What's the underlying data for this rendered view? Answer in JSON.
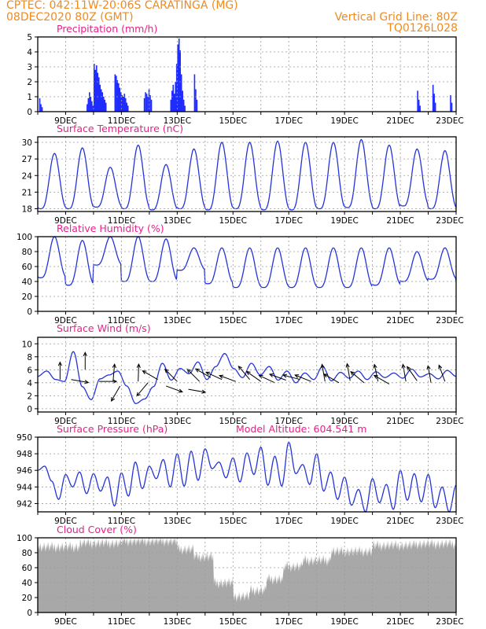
{
  "header": {
    "station_line": "CPTEC:   042:11W-20:06S   CARATINGA (MG)",
    "date_line": "08DEC2020 80Z (GMT)",
    "grid_line": "Vertical Grid Line: 80Z",
    "code": "TQ0126L028"
  },
  "colors": {
    "header": "#f08a1e",
    "title": "#e8208a",
    "precip_bar": "#1f2cff",
    "line": "#2433d9",
    "cloud": "#a8a8a8",
    "arrow": "#000000"
  },
  "x_axis": {
    "ticks": [
      "9DEC",
      "11DEC",
      "13DEC",
      "15DEC",
      "17DEC",
      "19DEC",
      "21DEC",
      "23DEC"
    ]
  },
  "chart_data": [
    {
      "type": "bar",
      "title": "Precipitation (mm/h)",
      "x_start": "08DEC2020",
      "x_end": "23DEC2020",
      "ylim": [
        0,
        5
      ],
      "yticks": [
        0,
        1,
        2,
        3,
        4,
        5
      ],
      "grid": true,
      "hourly": [
        [
          0.9,
          0.5,
          0.3
        ],
        [
          0.5,
          0.9,
          1.3,
          1.0,
          0.7,
          0.4,
          3.2,
          2.8,
          3.1,
          2.6,
          2.3,
          1.8,
          1.5,
          1.3,
          1.0,
          0.8,
          0.6
        ],
        [
          2.5,
          2.4,
          2.1,
          1.9,
          1.6,
          1.3,
          1.1,
          1.0,
          1.2,
          0.9,
          0.6,
          0.4
        ],
        [
          0.9,
          1.3,
          1.2,
          1.0,
          1.5,
          1.1,
          0.8
        ],
        [
          0.8,
          1.4,
          1.8,
          1.2,
          2.0,
          3.2,
          4.5,
          4.9,
          4.1,
          2.5,
          1.4,
          0.8,
          0.4
        ],
        [
          2.5,
          1.5,
          0.8
        ],
        [
          1.4,
          0.8,
          0.4
        ],
        [
          1.8,
          1.2,
          0.6
        ],
        [
          1.1,
          0.6
        ]
      ]
    },
    {
      "type": "line",
      "title": "Surface Temperature (nC)",
      "ylim": [
        17.5,
        31
      ],
      "yticks": [
        18,
        21,
        24,
        27,
        30
      ],
      "grid": true,
      "daily_min": [
        18.0,
        18.0,
        18.3,
        18.0,
        17.8,
        18.0,
        17.8,
        18.0,
        17.8,
        17.8,
        18.0,
        18.2,
        18.0,
        18.5,
        18.0
      ],
      "daily_max": [
        28.0,
        29.0,
        25.5,
        29.5,
        26.0,
        28.8,
        30.0,
        30.0,
        30.2,
        30.0,
        30.0,
        30.5,
        29.5,
        28.8,
        28.5
      ]
    },
    {
      "type": "line",
      "title": "Relative Humidity (%)",
      "ylim": [
        0,
        100
      ],
      "yticks": [
        0,
        20,
        40,
        60,
        80,
        100
      ],
      "grid": true,
      "daily_min": [
        45,
        35,
        62,
        40,
        40,
        55,
        37,
        32,
        32,
        32,
        32,
        32,
        35,
        40,
        43,
        40
      ],
      "daily_max": [
        100,
        95,
        100,
        100,
        97,
        85,
        85,
        85,
        85,
        85,
        85,
        85,
        85,
        80,
        85,
        82
      ]
    },
    {
      "type": "line",
      "title": "Surface Wind (m/s)",
      "ylim": [
        -0.5,
        11
      ],
      "yticks": [
        0,
        2,
        4,
        6,
        8,
        10
      ],
      "grid": true,
      "speed_profile": [
        5.0,
        5.8,
        4.5,
        4.2,
        8.8,
        3.4,
        1.4,
        4.6,
        5.2,
        5.8,
        3.5,
        0.8,
        1.5,
        3.4,
        7.0,
        4.4,
        6.2,
        5.4,
        7.2,
        4.5,
        6.5,
        8.5,
        6.2,
        4.8,
        7.0,
        5.2,
        6.5,
        4.4,
        5.8,
        4.0,
        5.5,
        4.5,
        6.5,
        4.3,
        5.6,
        4.7,
        5.8,
        4.5,
        5.7,
        4.8,
        5.5,
        4.7,
        6.1,
        4.9,
        5.4,
        4.6,
        5.9,
        5.0
      ],
      "arrows": [
        {
          "day": 0.8,
          "dir_deg": 180,
          "mag": 4.5
        },
        {
          "day": 1.2,
          "dir_deg": 80,
          "mag": 4.5
        },
        {
          "day": 1.7,
          "dir_deg": 180,
          "mag": 6.0
        },
        {
          "day": 2.2,
          "dir_deg": 90,
          "mag": 4.2
        },
        {
          "day": 2.7,
          "dir_deg": 175,
          "mag": 4.2
        },
        {
          "day": 2.95,
          "dir_deg": 330,
          "mag": 3.5
        },
        {
          "day": 3.6,
          "dir_deg": 178,
          "mag": 4.2
        },
        {
          "day": 3.95,
          "dir_deg": 320,
          "mag": 4.0
        },
        {
          "day": 4.3,
          "dir_deg": 240,
          "mag": 4.5
        },
        {
          "day": 4.6,
          "dir_deg": 70,
          "mag": 3.5
        },
        {
          "day": 5.0,
          "dir_deg": 225,
          "mag": 4.2
        },
        {
          "day": 5.4,
          "dir_deg": 80,
          "mag": 3.0
        },
        {
          "day": 5.8,
          "dir_deg": 225,
          "mag": 4.2
        },
        {
          "day": 6.2,
          "dir_deg": 240,
          "mag": 4.8
        },
        {
          "day": 6.6,
          "dir_deg": 245,
          "mag": 4.5
        },
        {
          "day": 7.1,
          "dir_deg": 250,
          "mag": 4.2
        },
        {
          "day": 7.6,
          "dir_deg": 220,
          "mag": 4.5
        },
        {
          "day": 8.0,
          "dir_deg": 235,
          "mag": 4.2
        },
        {
          "day": 8.5,
          "dir_deg": 245,
          "mag": 4.0
        },
        {
          "day": 8.9,
          "dir_deg": 250,
          "mag": 4.4
        },
        {
          "day": 9.4,
          "dir_deg": 255,
          "mag": 4.5
        },
        {
          "day": 9.8,
          "dir_deg": 248,
          "mag": 4.2
        },
        {
          "day": 10.3,
          "dir_deg": 190,
          "mag": 4.2
        },
        {
          "day": 10.8,
          "dir_deg": 240,
          "mag": 4.0
        },
        {
          "day": 11.2,
          "dir_deg": 190,
          "mag": 4.3
        },
        {
          "day": 11.7,
          "dir_deg": 230,
          "mag": 4.0
        },
        {
          "day": 12.2,
          "dir_deg": 192,
          "mag": 4.2
        },
        {
          "day": 12.6,
          "dir_deg": 240,
          "mag": 3.8
        },
        {
          "day": 13.2,
          "dir_deg": 190,
          "mag": 4.2
        },
        {
          "day": 13.6,
          "dir_deg": 215,
          "mag": 4.3
        },
        {
          "day": 14.1,
          "dir_deg": 190,
          "mag": 4.0
        },
        {
          "day": 14.6,
          "dir_deg": 200,
          "mag": 4.2
        }
      ]
    },
    {
      "type": "line",
      "title": "Surface Pressure (hPa)",
      "annotation": "Model Altitude: 604.541  m",
      "ylim": [
        941,
        950
      ],
      "yticks": [
        942,
        944,
        946,
        948,
        950
      ],
      "grid": true,
      "profile": [
        946.0,
        946.5,
        944.7,
        942.5,
        945.5,
        944.0,
        945.8,
        943.2,
        945.6,
        943.5,
        945.2,
        941.7,
        945.7,
        942.9,
        947.0,
        943.8,
        946.5,
        945.0,
        947.3,
        944.0,
        948.0,
        944.1,
        948.3,
        944.8,
        948.6,
        946.2,
        947.0,
        945.1,
        947.5,
        944.6,
        948.1,
        945.5,
        948.8,
        944.2,
        947.7,
        944.1,
        949.4,
        945.6,
        946.7,
        944.3,
        948.0,
        943.5,
        945.8,
        942.5,
        945.2,
        941.8,
        943.7,
        941.0,
        945.0,
        942.1,
        944.3,
        941.3,
        946.0,
        942.4,
        945.6,
        942.2,
        945.5,
        941.5,
        944.0,
        941.0,
        944.2
      ]
    },
    {
      "type": "area",
      "title": "Cloud Cover (%)",
      "ylim": [
        0,
        100
      ],
      "yticks": [
        0,
        20,
        40,
        60,
        80,
        100
      ],
      "grid": true,
      "segments": [
        {
          "from": 0.0,
          "to": 1.5,
          "value": 88
        },
        {
          "from": 1.5,
          "to": 3.0,
          "value": 93
        },
        {
          "from": 3.0,
          "to": 5.0,
          "value": 96
        },
        {
          "from": 5.0,
          "to": 5.6,
          "value": 85
        },
        {
          "from": 5.6,
          "to": 6.3,
          "value": 75
        },
        {
          "from": 6.3,
          "to": 7.0,
          "value": 40
        },
        {
          "from": 7.0,
          "to": 7.6,
          "value": 22
        },
        {
          "from": 7.6,
          "to": 8.2,
          "value": 30
        },
        {
          "from": 8.2,
          "to": 8.8,
          "value": 45
        },
        {
          "from": 8.8,
          "to": 9.5,
          "value": 62
        },
        {
          "from": 9.5,
          "to": 10.5,
          "value": 70
        },
        {
          "from": 10.5,
          "to": 12.0,
          "value": 82
        },
        {
          "from": 12.0,
          "to": 13.5,
          "value": 90
        },
        {
          "from": 13.5,
          "to": 15.0,
          "value": 92
        }
      ]
    }
  ]
}
